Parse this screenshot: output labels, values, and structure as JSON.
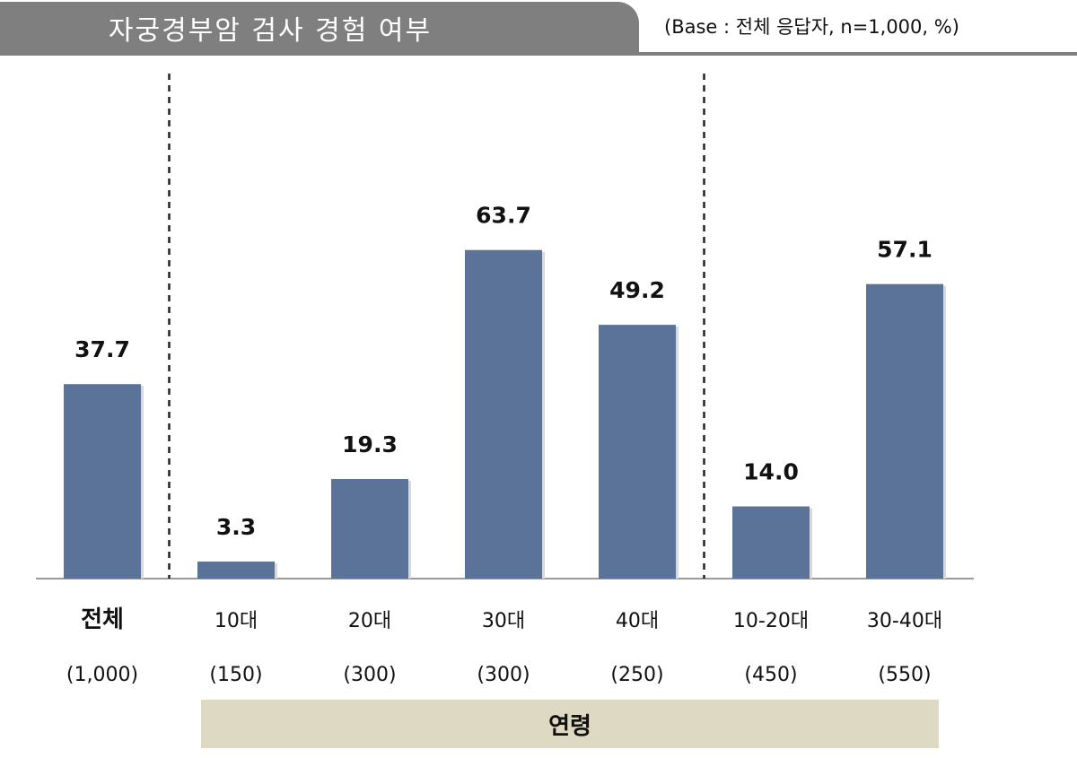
{
  "header": {
    "title": "자궁경부암 검사 경험 여부",
    "base_note": "(Base : 전체 응답자, n=1,000, %)"
  },
  "colors": {
    "bar": "#5b7399",
    "title_bg": "#7f7f7f",
    "band_bg": "#ddd9c3"
  },
  "group_band": {
    "label": "연령"
  },
  "chart_data": {
    "type": "bar",
    "categories": [
      "전체",
      "10대",
      "20대",
      "30대",
      "40대",
      "10-20대",
      "30-40대"
    ],
    "bases": [
      "(1,000)",
      "(150)",
      "(300)",
      "(300)",
      "(250)",
      "(450)",
      "(550)"
    ],
    "values": [
      37.7,
      3.3,
      19.3,
      63.7,
      49.2,
      14.0,
      57.1
    ],
    "value_labels": [
      "37.7",
      "3.3",
      "19.3",
      "63.7",
      "49.2",
      "14.0",
      "57.1"
    ],
    "ylim": [
      0,
      100
    ],
    "title": "",
    "xlabel": "",
    "ylabel": "",
    "grid": false,
    "separators_after_index": [
      0,
      4
    ]
  }
}
